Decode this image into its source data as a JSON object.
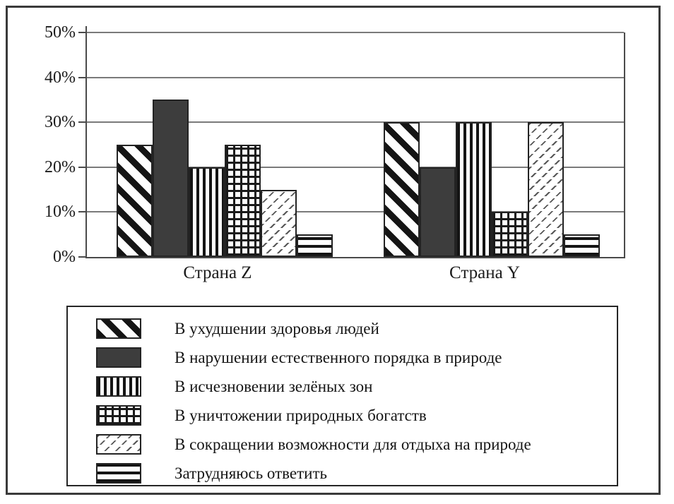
{
  "chart_data": {
    "type": "bar",
    "title": "",
    "groups": [
      {
        "label": "Страна Z"
      },
      {
        "label": "Страна Y"
      }
    ],
    "series": [
      {
        "name": "В ухудшении здоровья людей",
        "pattern": "diagonal-stripes",
        "values": [
          25,
          30
        ]
      },
      {
        "name": "В нарушении естественного порядка в природе",
        "pattern": "solid-dark",
        "values": [
          35,
          20
        ]
      },
      {
        "name": "В исчезновении зелёных зон",
        "pattern": "vertical-stripes",
        "values": [
          20,
          30
        ]
      },
      {
        "name": "В уничтожении природных богатств",
        "pattern": "crosshatch-grid",
        "values": [
          25,
          10
        ]
      },
      {
        "name": "В сокращении возможности для отдыха на природе",
        "pattern": "diagonal-dashes",
        "values": [
          15,
          30
        ]
      },
      {
        "name": "Затрудняюсь ответить",
        "pattern": "horizontal-stripes",
        "values": [
          5,
          5
        ]
      }
    ],
    "y_axis": {
      "unit": "%",
      "min": 0,
      "max": 50,
      "step": 10,
      "tick_labels": [
        "50%",
        "40%",
        "30%",
        "20%",
        "10%",
        "0%"
      ]
    },
    "grid": true,
    "legend_position": "bottom"
  },
  "colors": {
    "solid_bar": "#3d3d3d",
    "axis_line": "#4a4a4a",
    "gridline": "#7a7a7a",
    "frame_border": "#3a3a3a",
    "background": "#ffffff",
    "text": "#1c1c1c"
  }
}
